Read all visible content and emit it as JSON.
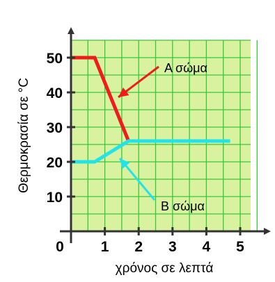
{
  "chart_data": {
    "type": "line",
    "xlabel": "χρόνος σε λεπτά",
    "ylabel": "Θερμοκρασία σε °C",
    "xlim": [
      0,
      5
    ],
    "ylim": [
      0,
      50
    ],
    "x_ticks": [
      "1",
      "2",
      "3",
      "4",
      "5"
    ],
    "y_ticks": [
      "10",
      "20",
      "30",
      "40",
      "50"
    ],
    "origin_label": "0",
    "grid": true,
    "plot_background": "#d8f2a0",
    "grid_color": "#38c838",
    "series": [
      {
        "name": "Α σώμα",
        "color": "#ee1c1c",
        "x": [
          0,
          0.7,
          1.7,
          4.7
        ],
        "y": [
          50,
          50,
          26,
          26
        ]
      },
      {
        "name": "Β σώμα",
        "color": "#22e4e8",
        "x": [
          0,
          0.7,
          1.7,
          4.7
        ],
        "y": [
          20,
          20,
          26,
          26
        ]
      }
    ],
    "annotations": [
      {
        "text": "Α σώμα",
        "series": 0,
        "arrow_color": "#ee1c1c"
      },
      {
        "text": "Β σώμα",
        "series": 1,
        "arrow_color": "#22e4e8"
      }
    ]
  }
}
